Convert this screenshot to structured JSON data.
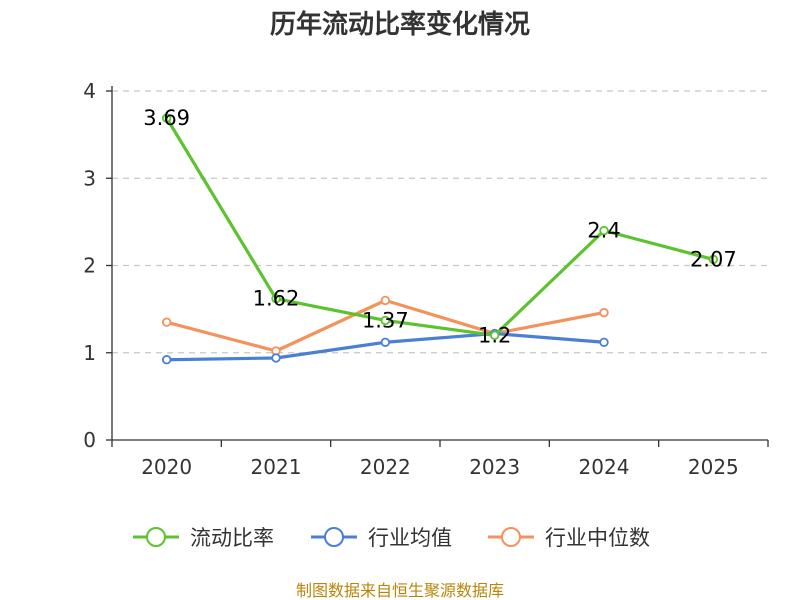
{
  "chart_data": {
    "type": "line",
    "title": "历年流动比率变化情况",
    "categories": [
      "2020",
      "2021",
      "2022",
      "2023",
      "2024",
      "2025"
    ],
    "ylim": [
      0,
      4
    ],
    "yticks": [
      "0",
      "1",
      "2",
      "3",
      "4"
    ],
    "grid": true,
    "legend_position": "bottom",
    "series": [
      {
        "name": "流动比率",
        "color": "#5cc32f",
        "values": [
          3.69,
          1.62,
          1.37,
          1.2,
          2.4,
          2.07
        ],
        "labels": [
          "3.69",
          "1.62",
          "1.37",
          "1.2",
          "2.4",
          "2.07"
        ]
      },
      {
        "name": "行业均值",
        "color": "#4a7fd6",
        "values": [
          0.92,
          0.94,
          1.12,
          1.22,
          1.12,
          null
        ]
      },
      {
        "name": "行业中位数",
        "color": "#f5925b",
        "values": [
          1.35,
          1.02,
          1.6,
          1.22,
          1.46,
          null
        ]
      }
    ]
  },
  "source": "制图数据来自恒生聚源数据库"
}
